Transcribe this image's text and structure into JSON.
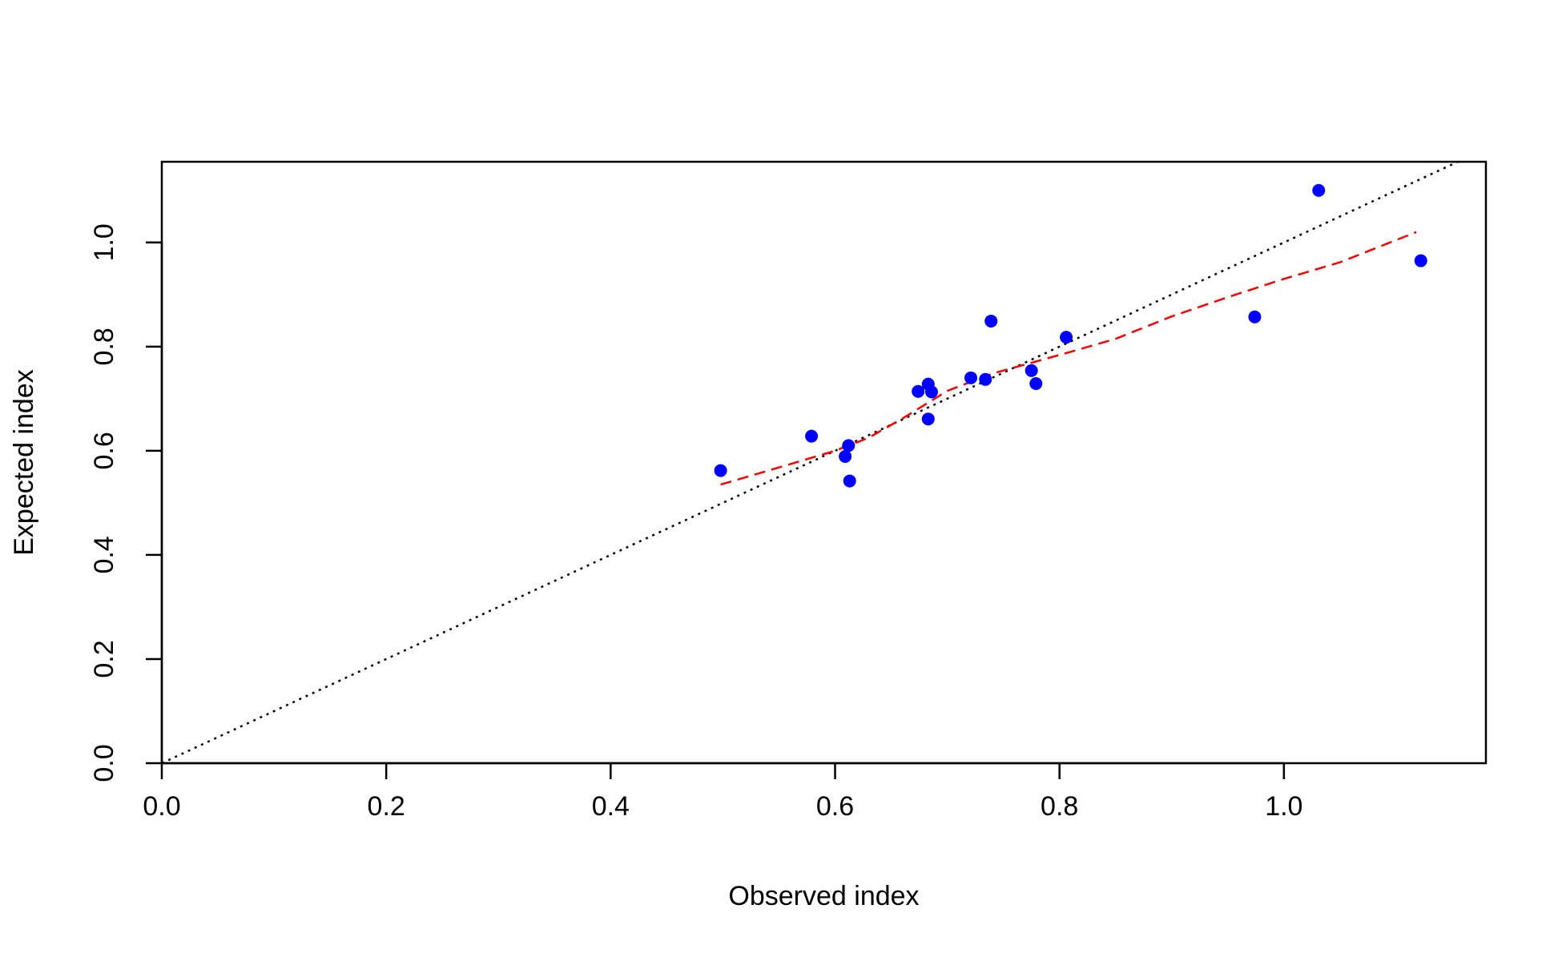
{
  "chart_data": {
    "type": "scatter",
    "title": "",
    "xlabel": "Observed index",
    "ylabel": "Expected index",
    "xlim": [
      0.0,
      1.18
    ],
    "ylim": [
      0.0,
      1.155
    ],
    "xticks": [
      0.0,
      0.2,
      0.4,
      0.6,
      0.8,
      1.0
    ],
    "xtick_labels": [
      "0.0",
      "0.2",
      "0.4",
      "0.6",
      "0.8",
      "1.0"
    ],
    "yticks": [
      0.0,
      0.2,
      0.4,
      0.6,
      0.8,
      1.0
    ],
    "ytick_labels": [
      "0.0",
      "0.2",
      "0.4",
      "0.6",
      "0.8",
      "1.0"
    ],
    "grid": false,
    "colors": {
      "points": "#0000ff",
      "smooth_line": "#ff0000",
      "reference_line": "#000000",
      "axes": "#000000"
    },
    "points": [
      {
        "x": 0.498,
        "y": 0.562
      },
      {
        "x": 0.579,
        "y": 0.628
      },
      {
        "x": 0.609,
        "y": 0.589
      },
      {
        "x": 0.612,
        "y": 0.61
      },
      {
        "x": 0.613,
        "y": 0.542
      },
      {
        "x": 0.674,
        "y": 0.714
      },
      {
        "x": 0.683,
        "y": 0.728
      },
      {
        "x": 0.686,
        "y": 0.713
      },
      {
        "x": 0.683,
        "y": 0.661
      },
      {
        "x": 0.721,
        "y": 0.74
      },
      {
        "x": 0.734,
        "y": 0.737
      },
      {
        "x": 0.739,
        "y": 0.849
      },
      {
        "x": 0.775,
        "y": 0.754
      },
      {
        "x": 0.779,
        "y": 0.729
      },
      {
        "x": 0.806,
        "y": 0.818
      },
      {
        "x": 0.974,
        "y": 0.857
      },
      {
        "x": 1.031,
        "y": 1.1
      },
      {
        "x": 1.122,
        "y": 0.965
      }
    ],
    "reference_line": {
      "style": "dotted",
      "from": [
        0.0,
        0.0
      ],
      "to": [
        1.155,
        1.155
      ]
    },
    "smooth_line": {
      "style": "dashed",
      "x": [
        0.498,
        0.55,
        0.6,
        0.63,
        0.66,
        0.7,
        0.74,
        0.78,
        0.81,
        0.85,
        0.9,
        0.95,
        1.0,
        1.05,
        1.118
      ],
      "y": [
        0.535,
        0.568,
        0.6,
        0.625,
        0.662,
        0.715,
        0.748,
        0.772,
        0.79,
        0.815,
        0.858,
        0.895,
        0.93,
        0.962,
        1.02
      ]
    }
  }
}
